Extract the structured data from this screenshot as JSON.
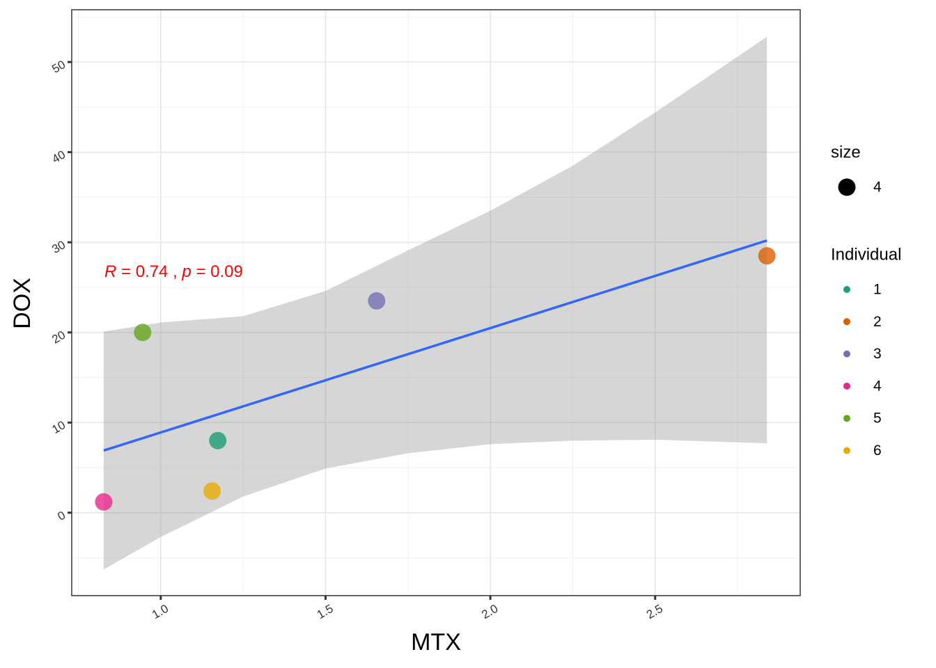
{
  "chart_data": {
    "type": "scatter",
    "x_label": "MTX",
    "y_label": "DOX",
    "xlim": [
      0.73,
      2.94
    ],
    "ylim": [
      -9.2,
      55.8
    ],
    "xticks": [
      {
        "value": 1,
        "label": "1.0"
      },
      {
        "value": 1.5,
        "label": "1.5"
      },
      {
        "value": 2,
        "label": "2.0"
      },
      {
        "value": 2.5,
        "label": "2.5"
      }
    ],
    "yticks": [
      0,
      10,
      20,
      30,
      40,
      50
    ],
    "grid": true,
    "legend_title": "Individual",
    "size_legend": {
      "title": "size",
      "labels": [
        "4"
      ]
    },
    "annotation": {
      "r": "R",
      "r_text": " = 0.74 , ",
      "p": "p",
      "p_text": " = 0.09"
    },
    "series": [
      {
        "name": "1",
        "color": "#1B9E77",
        "x": [
          1.173
        ],
        "values": [
          8.0
        ]
      },
      {
        "name": "2",
        "color": "#D95F02",
        "x": [
          2.839
        ],
        "values": [
          28.5
        ]
      },
      {
        "name": "3",
        "color": "#7570B3",
        "x": [
          1.655
        ],
        "values": [
          23.5
        ]
      },
      {
        "name": "4",
        "color": "#E7298A",
        "x": [
          0.827
        ],
        "values": [
          1.2
        ]
      },
      {
        "name": "5",
        "color": "#66A61E",
        "x": [
          0.945
        ],
        "values": [
          20.0
        ]
      },
      {
        "name": "6",
        "color": "#E6AB02",
        "x": [
          1.156
        ],
        "values": [
          2.4
        ]
      }
    ],
    "fit": {
      "color": "#3366FF",
      "x": [
        0.827,
        2.839
      ],
      "values": [
        6.9,
        30.2
      ]
    },
    "band": {
      "color": "#999999",
      "x": [
        0.827,
        1.0,
        1.25,
        1.5,
        1.75,
        2.0,
        2.25,
        2.5,
        2.839
      ],
      "upper": [
        20.1,
        21.1,
        21.8,
        24.6,
        29.1,
        33.5,
        38.5,
        44.4,
        52.8
      ],
      "lower": [
        -6.3,
        -2.7,
        1.8,
        4.9,
        6.6,
        7.6,
        8.0,
        8.1,
        7.7
      ]
    }
  }
}
